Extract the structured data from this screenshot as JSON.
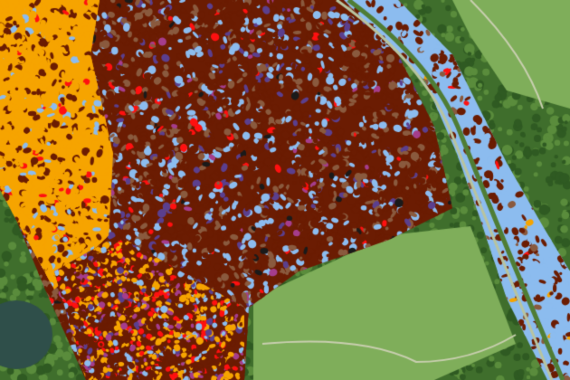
{
  "map": {
    "type": "classified aerial imagery overlay",
    "background_colors": {
      "forest": "#3f6e2c",
      "meadow": "#7fae5a",
      "water": "#2f4f4a",
      "path": "#c9cfb0"
    },
    "class_colors": {
      "dark_brown": "#6b1c02",
      "light_blue": "#8cbcef",
      "orange": "#f6a400",
      "brown": "#8a5a3e",
      "purple": "#5b3f8e",
      "red": "#ff1010",
      "magenta": "#a53d8c",
      "black": "#1a1a1a"
    }
  }
}
